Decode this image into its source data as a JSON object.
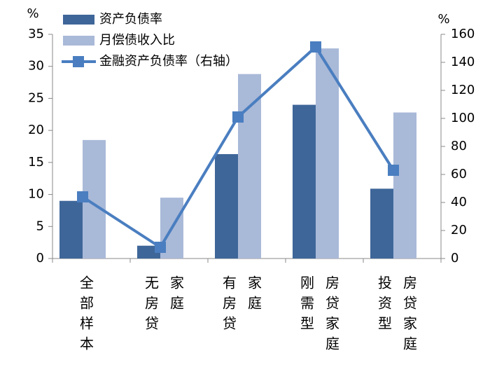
{
  "chart_data": {
    "type": "bar-line",
    "y_unit": "%",
    "y2_unit": "%",
    "categories": [
      [
        "全部样本"
      ],
      [
        "无房贷",
        "家庭"
      ],
      [
        "有房贷",
        "家庭"
      ],
      [
        "刚需型",
        "房贷家庭"
      ],
      [
        "投资型",
        "房贷家庭"
      ]
    ],
    "series": [
      {
        "name": "资产负债率",
        "type": "bar",
        "color": "#3e6699",
        "values": [
          9,
          2,
          16.3,
          24,
          10.9
        ]
      },
      {
        "name": "月偿债收入比",
        "type": "bar",
        "color": "#a9b9d8",
        "values": [
          18.5,
          9.5,
          28.8,
          32.8,
          22.8
        ]
      },
      {
        "name": "金融资产负债率（右轴）",
        "type": "line",
        "axis": "y2",
        "color": "#4a7ec0",
        "values": [
          44,
          8,
          101,
          151,
          63
        ]
      }
    ],
    "ylim": [
      0,
      35
    ],
    "yticks": [
      0,
      5,
      10,
      15,
      20,
      25,
      30,
      35
    ],
    "y2lim": [
      0,
      160
    ],
    "y2ticks": [
      0,
      20,
      40,
      60,
      80,
      100,
      120,
      140,
      160
    ]
  }
}
